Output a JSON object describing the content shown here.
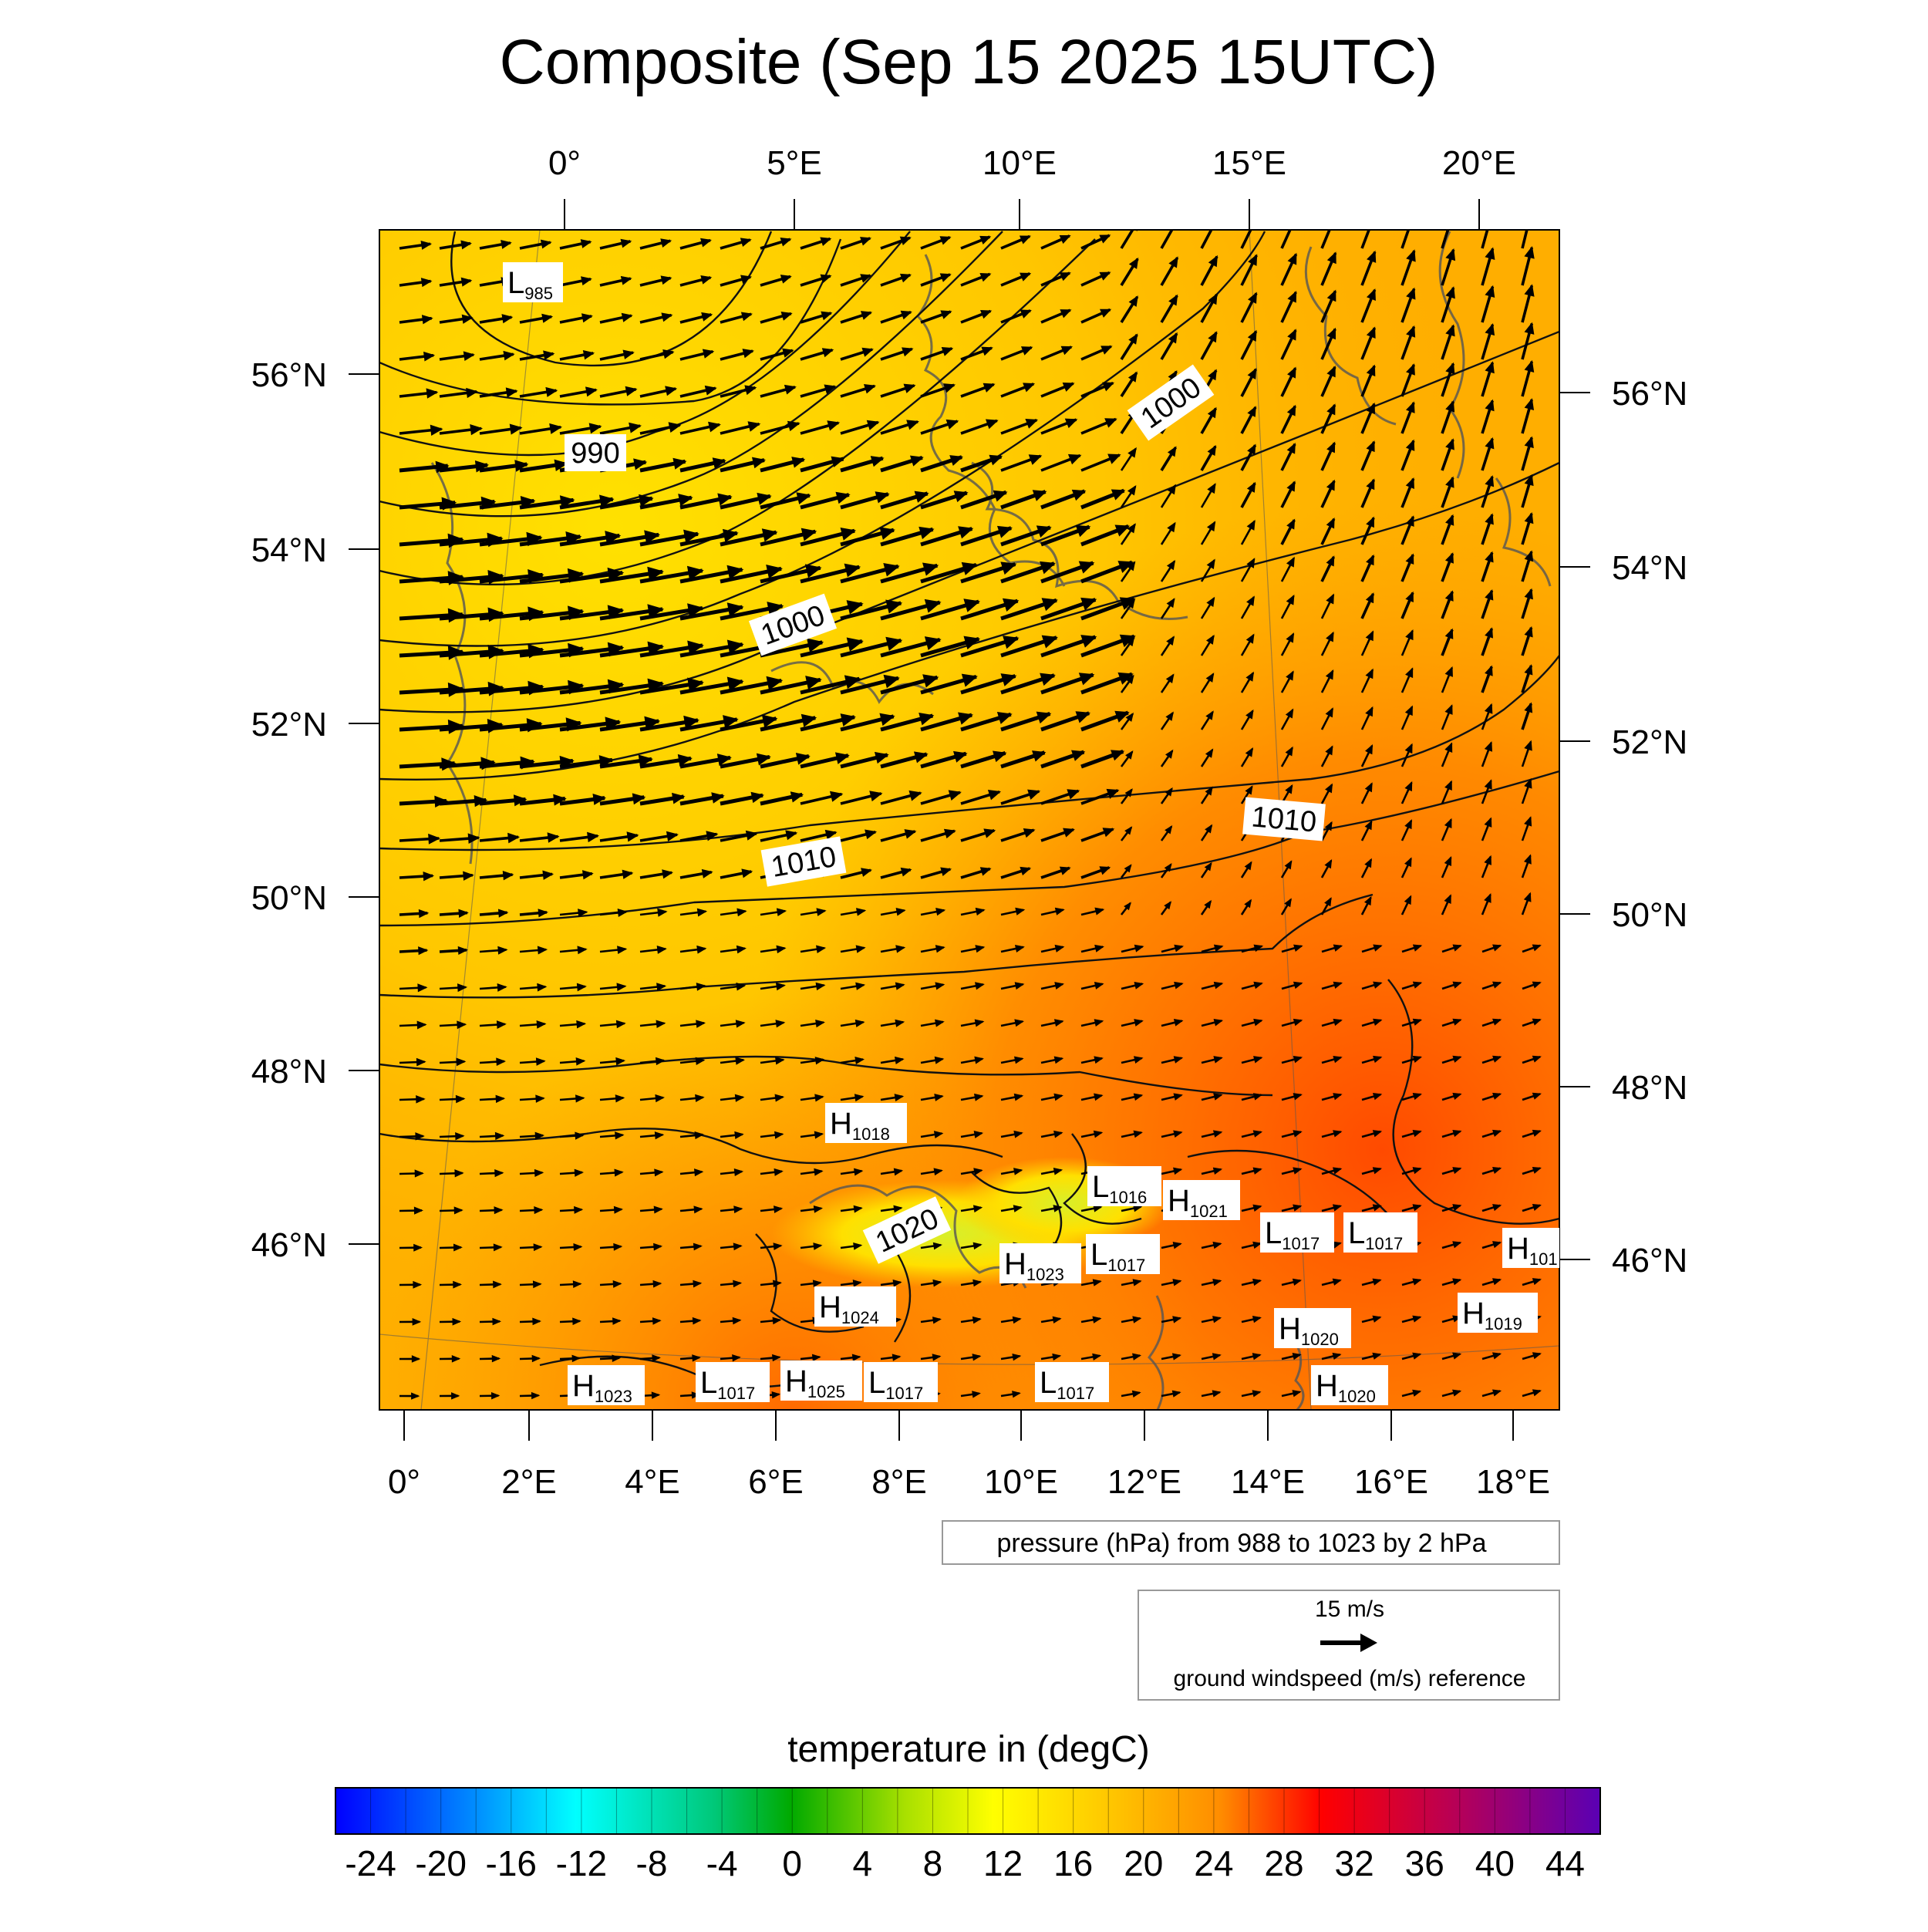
{
  "title": "Composite (Sep 15 2025 15UTC)",
  "top_lon_labels": [
    "0°",
    "5°E",
    "10°E",
    "15°E",
    "20°E"
  ],
  "bottom_lon_labels": [
    "0°",
    "2°E",
    "4°E",
    "6°E",
    "8°E",
    "10°E",
    "12°E",
    "14°E",
    "16°E",
    "18°E"
  ],
  "left_lat_labels": [
    "56°N",
    "54°N",
    "52°N",
    "50°N",
    "48°N",
    "46°N"
  ],
  "right_lat_labels": [
    "56°N",
    "54°N",
    "52°N",
    "50°N",
    "48°N",
    "46°N"
  ],
  "isobar_labels": [
    "990",
    "1000",
    "1000",
    "1010",
    "1010",
    "1020"
  ],
  "pressure_centers": [
    {
      "type": "L",
      "value": "985"
    },
    {
      "type": "H",
      "value": "1018"
    },
    {
      "type": "L",
      "value": "1016"
    },
    {
      "type": "H",
      "value": "1021"
    },
    {
      "type": "L",
      "value": "1017"
    },
    {
      "type": "L",
      "value": "1017"
    },
    {
      "type": "H",
      "value": "101"
    },
    {
      "type": "H",
      "value": "1023"
    },
    {
      "type": "L",
      "value": "1017"
    },
    {
      "type": "H",
      "value": "1024"
    },
    {
      "type": "H",
      "value": "1019"
    },
    {
      "type": "H",
      "value": "1020"
    },
    {
      "type": "H",
      "value": "1023"
    },
    {
      "type": "L",
      "value": "1017"
    },
    {
      "type": "H",
      "value": "1025"
    },
    {
      "type": "L",
      "value": "1017"
    },
    {
      "type": "L",
      "value": "1017"
    },
    {
      "type": "H",
      "value": "1020"
    }
  ],
  "pressure_legend": "pressure (hPa) from 988 to 1023 by 2 hPa",
  "wind_legend": {
    "speed": "15 m/s",
    "caption": "ground windspeed (m/s) reference"
  },
  "colorbar": {
    "title": "temperature in (degC)",
    "ticks": [
      "-24",
      "-20",
      "-16",
      "-12",
      "-8",
      "-4",
      "0",
      "4",
      "8",
      "12",
      "16",
      "20",
      "24",
      "28",
      "32",
      "36",
      "40",
      "44"
    ],
    "min": -26,
    "max": 46,
    "step": 2,
    "colors": [
      "#0000ff",
      "#00ffff",
      "#00c864",
      "#00aa00",
      "#9ade00",
      "#ffff00",
      "#ffc800",
      "#ff8c00",
      "#ff0000",
      "#b4005a",
      "#5a00b4"
    ]
  },
  "colors": {
    "map_warm": "#ff8c00",
    "map_mid": "#ffc000",
    "map_hot": "#ff5a00",
    "arrow": "#000000"
  }
}
